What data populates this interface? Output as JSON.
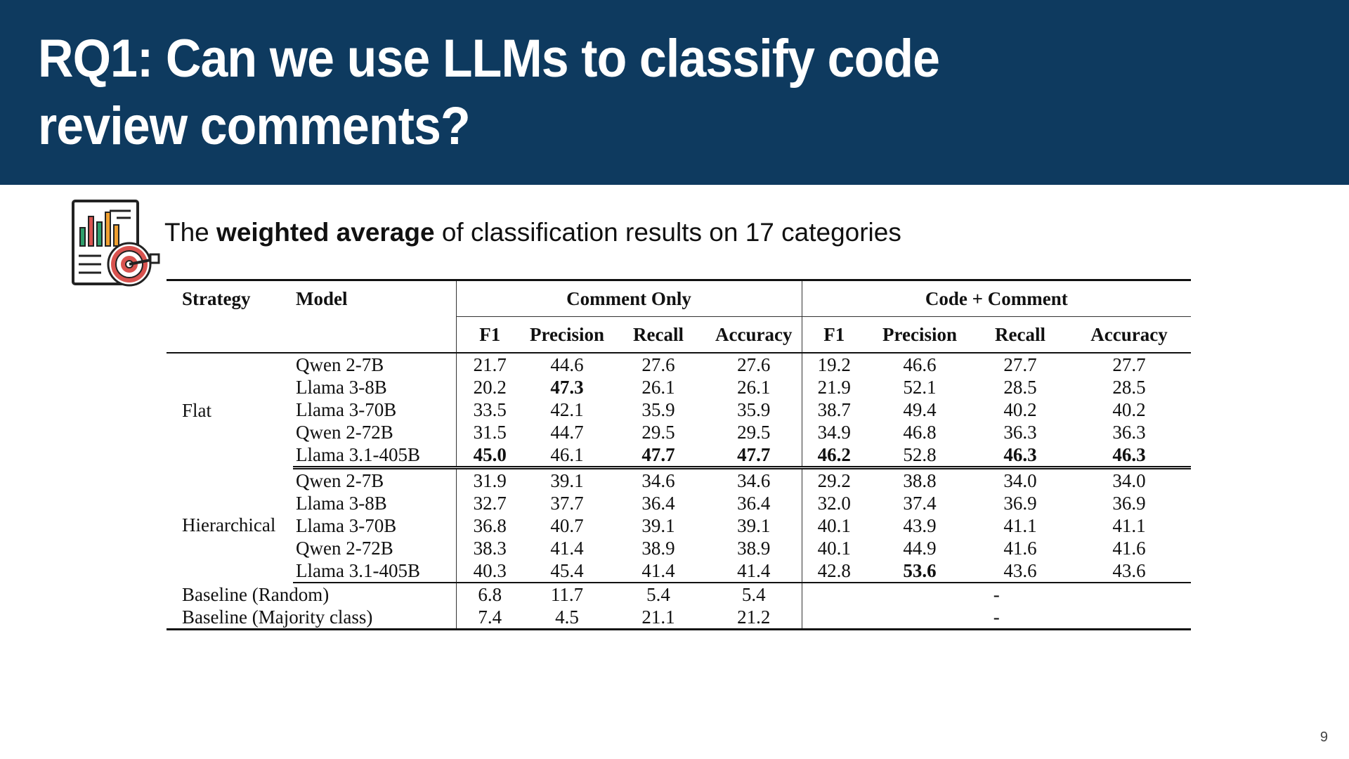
{
  "title": "RQ1: Can we use LLMs to classify code review comments?",
  "subtitle": {
    "prefix": "The ",
    "emphasis": "weighted average",
    "suffix": " of classification results on 17 categories"
  },
  "icon": "report-target-icon",
  "colors": {
    "header_bg": "#0e3a5f",
    "title_text": "#ffffff",
    "icon_red": "#d9534f",
    "icon_green": "#2e9e6b",
    "icon_orange": "#f0a030"
  },
  "table": {
    "headers": {
      "strategy": "Strategy",
      "model": "Model",
      "group1": "Comment Only",
      "group2": "Code + Comment",
      "metrics": [
        "F1",
        "Precision",
        "Recall",
        "Accuracy"
      ]
    },
    "flat": {
      "label": "Flat",
      "rows": [
        {
          "model": "Qwen 2-7B",
          "co": [
            "21.7",
            "44.6",
            "27.6",
            "27.6"
          ],
          "cc": [
            "19.2",
            "46.6",
            "27.7",
            "27.7"
          ],
          "bold": []
        },
        {
          "model": "Llama 3-8B",
          "co": [
            "20.2",
            "47.3",
            "26.1",
            "26.1"
          ],
          "cc": [
            "21.9",
            "52.1",
            "28.5",
            "28.5"
          ],
          "bold": [
            "co1"
          ]
        },
        {
          "model": "Llama 3-70B",
          "co": [
            "33.5",
            "42.1",
            "35.9",
            "35.9"
          ],
          "cc": [
            "38.7",
            "49.4",
            "40.2",
            "40.2"
          ],
          "bold": []
        },
        {
          "model": "Qwen 2-72B",
          "co": [
            "31.5",
            "44.7",
            "29.5",
            "29.5"
          ],
          "cc": [
            "34.9",
            "46.8",
            "36.3",
            "36.3"
          ],
          "bold": []
        },
        {
          "model": "Llama 3.1-405B",
          "co": [
            "45.0",
            "46.1",
            "47.7",
            "47.7"
          ],
          "cc": [
            "46.2",
            "52.8",
            "46.3",
            "46.3"
          ],
          "bold": [
            "co0",
            "co2",
            "co3",
            "cc0",
            "cc2",
            "cc3"
          ]
        }
      ]
    },
    "hierarchical": {
      "label": "Hierarchical",
      "rows": [
        {
          "model": "Qwen 2-7B",
          "co": [
            "31.9",
            "39.1",
            "34.6",
            "34.6"
          ],
          "cc": [
            "29.2",
            "38.8",
            "34.0",
            "34.0"
          ],
          "bold": []
        },
        {
          "model": "Llama 3-8B",
          "co": [
            "32.7",
            "37.7",
            "36.4",
            "36.4"
          ],
          "cc": [
            "32.0",
            "37.4",
            "36.9",
            "36.9"
          ],
          "bold": []
        },
        {
          "model": "Llama 3-70B",
          "co": [
            "36.8",
            "40.7",
            "39.1",
            "39.1"
          ],
          "cc": [
            "40.1",
            "43.9",
            "41.1",
            "41.1"
          ],
          "bold": []
        },
        {
          "model": "Qwen 2-72B",
          "co": [
            "38.3",
            "41.4",
            "38.9",
            "38.9"
          ],
          "cc": [
            "40.1",
            "44.9",
            "41.6",
            "41.6"
          ],
          "bold": []
        },
        {
          "model": "Llama 3.1-405B",
          "co": [
            "40.3",
            "45.4",
            "41.4",
            "41.4"
          ],
          "cc": [
            "42.8",
            "53.6",
            "43.6",
            "43.6"
          ],
          "bold": [
            "cc1"
          ]
        }
      ]
    },
    "baselines": [
      {
        "label": "Baseline (Random)",
        "co": [
          "6.8",
          "11.7",
          "5.4",
          "5.4"
        ],
        "cc": "-"
      },
      {
        "label": "Baseline (Majority class)",
        "co": [
          "7.4",
          "4.5",
          "21.1",
          "21.2"
        ],
        "cc": "-"
      }
    ]
  },
  "page_number": "9"
}
